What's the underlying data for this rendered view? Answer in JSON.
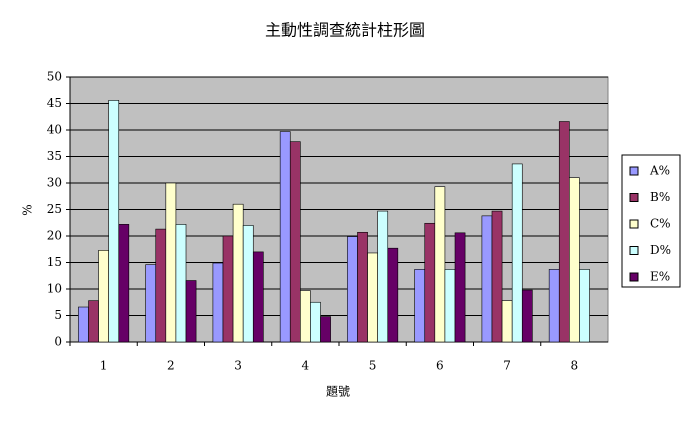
{
  "chart_data": {
    "type": "bar",
    "title": "主動性調查統計柱形圖",
    "x_label": "題號",
    "y_label": "%",
    "categories": [
      "1",
      "2",
      "3",
      "4",
      "5",
      "6",
      "7",
      "8"
    ],
    "series": [
      {
        "name": "A%",
        "color": "#9999ff",
        "values": [
          6.6,
          14.6,
          14.9,
          39.7,
          19.9,
          13.7,
          23.8,
          13.7
        ]
      },
      {
        "name": "B%",
        "color": "#993366",
        "values": [
          7.8,
          21.3,
          20.0,
          37.8,
          20.7,
          22.4,
          24.7,
          41.6
        ]
      },
      {
        "name": "C%",
        "color": "#ffffcc",
        "values": [
          17.3,
          30.0,
          26.0,
          9.7,
          16.8,
          29.3,
          7.8,
          31.0
        ]
      },
      {
        "name": "D%",
        "color": "#ccffff",
        "values": [
          45.6,
          22.2,
          22.0,
          7.5,
          24.7,
          13.7,
          33.6,
          13.7
        ]
      },
      {
        "name": "E%",
        "color": "#660066",
        "values": [
          22.2,
          11.6,
          17.0,
          4.8,
          17.7,
          20.6,
          9.8,
          null
        ]
      }
    ],
    "ylim": [
      0,
      50
    ],
    "yticks": [
      0,
      5,
      10,
      15,
      20,
      25,
      30,
      35,
      40,
      45,
      50
    ],
    "grid": true,
    "legend": "right"
  }
}
